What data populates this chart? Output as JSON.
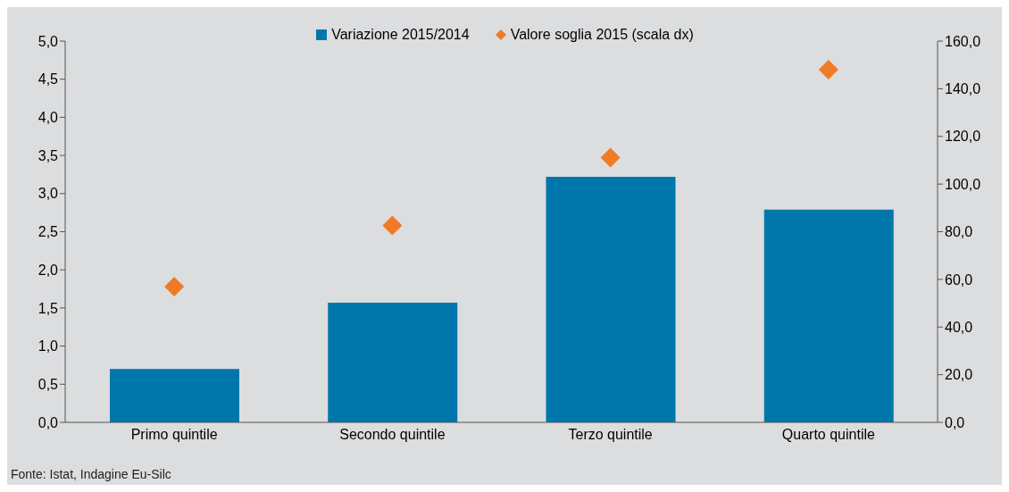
{
  "chart_data": {
    "type": "bar",
    "categories": [
      "Primo quintile",
      "Secondo quintile",
      "Terzo quintile",
      "Quarto quintile"
    ],
    "series": [
      {
        "name": "Variazione 2015/2014",
        "color": "#0077aa",
        "values": [
          0.7,
          1.57,
          3.22,
          2.79
        ]
      },
      {
        "name": "Valore soglia 2015 (scala dx)",
        "type": "scatter",
        "axis": "y2",
        "color": "#f07b26",
        "values": [
          57.0,
          82.6,
          111.1,
          148.0
        ]
      }
    ],
    "ylim": [
      0,
      5
    ],
    "yticks": [
      {
        "value": 0,
        "label": "0,0"
      },
      {
        "value": 0.5,
        "label": "0,5"
      },
      {
        "value": 1,
        "label": "1,0"
      },
      {
        "value": 1.5,
        "label": "1,5"
      },
      {
        "value": 2,
        "label": "2,0"
      },
      {
        "value": 2.5,
        "label": "2,5"
      },
      {
        "value": 3,
        "label": "3,0"
      },
      {
        "value": 3.5,
        "label": "3,5"
      },
      {
        "value": 4,
        "label": "4,0"
      },
      {
        "value": 4.5,
        "label": "4,5"
      },
      {
        "value": 5,
        "label": "5,0"
      }
    ],
    "y2lim": [
      0,
      160
    ],
    "y2ticks": [
      {
        "value": 0,
        "label": "0,0"
      },
      {
        "value": 20,
        "label": "20,0"
      },
      {
        "value": 40,
        "label": "40,0"
      },
      {
        "value": 60,
        "label": "60,0"
      },
      {
        "value": 80,
        "label": "80,0"
      },
      {
        "value": 100,
        "label": "100,0"
      },
      {
        "value": 120,
        "label": "120,0"
      },
      {
        "value": 140,
        "label": "140,0"
      },
      {
        "value": 160,
        "label": "160,0"
      }
    ],
    "marker": "diamond",
    "legend": "top",
    "annotations": [
      "Fonte: Istat, Indagine Eu-Silc"
    ]
  }
}
